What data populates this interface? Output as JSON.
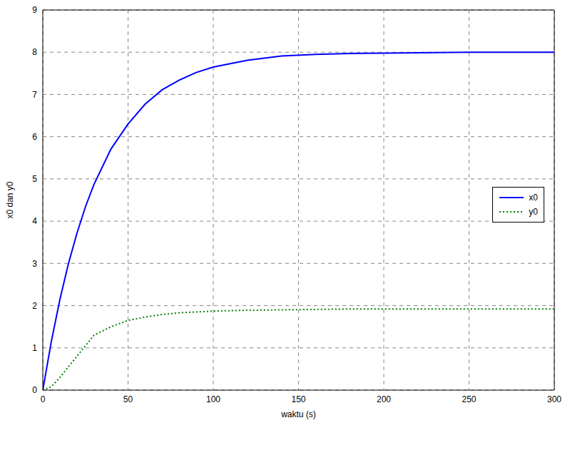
{
  "chart_data": {
    "type": "line",
    "x_label": "waktu (s)",
    "y_label": "x0 dan y0",
    "x": [
      0,
      5,
      10,
      15,
      20,
      25,
      30,
      40,
      50,
      60,
      70,
      80,
      90,
      100,
      120,
      140,
      160,
      180,
      200,
      250,
      300
    ],
    "series": [
      {
        "name": "x0",
        "color": "#0000ff",
        "line_style": "solid",
        "values": [
          0,
          1.15,
          2.14,
          2.99,
          3.71,
          4.34,
          4.87,
          5.71,
          6.3,
          6.77,
          7.11,
          7.34,
          7.52,
          7.65,
          7.81,
          7.91,
          7.95,
          7.97,
          7.98,
          8.0,
          8.0
        ]
      },
      {
        "name": "y0",
        "color": "#008000",
        "line_style": "dotted",
        "values": [
          0,
          0.08,
          0.3,
          0.55,
          0.8,
          1.05,
          1.3,
          1.5,
          1.65,
          1.73,
          1.79,
          1.83,
          1.85,
          1.87,
          1.89,
          1.9,
          1.91,
          1.92,
          1.92,
          1.92,
          1.92
        ]
      }
    ],
    "xlim": [
      0,
      300
    ],
    "xticks": [
      0,
      50,
      100,
      150,
      200,
      250,
      300
    ],
    "ylim": [
      0,
      9
    ],
    "yticks": [
      0,
      1,
      2,
      3,
      4,
      5,
      6,
      7,
      8,
      9
    ],
    "grid": true,
    "legend": "right"
  }
}
